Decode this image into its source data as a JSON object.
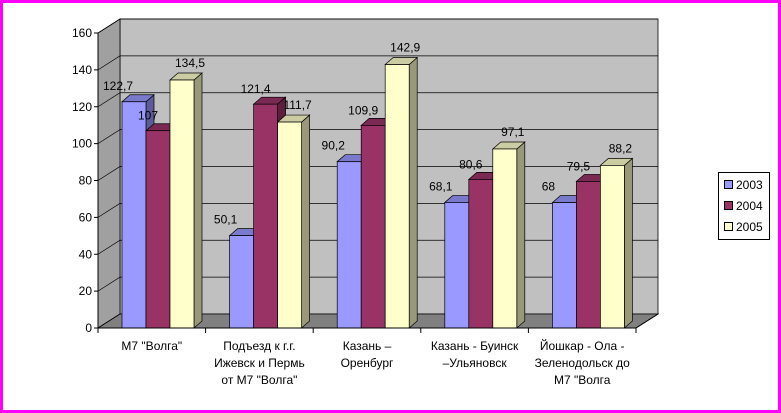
{
  "colors": {
    "frame": "#ff00ff",
    "plot_back_wall": "#c0c0c0",
    "plot_floor": "#808080",
    "plot_side_wall": "#a0a0a0",
    "series": [
      "#9999ff",
      "#993366",
      "#ffffcc"
    ]
  },
  "chart_data": {
    "type": "bar",
    "style": "3d-clustered-column",
    "categories": [
      "М7 \"Волга\"",
      "Подъезд к г.г. Ижевск и Пермь от М7 \"Волга\"",
      "Казань – Оренбург",
      "Казань - Буинск –Ульяновск",
      "Йошкар - Ола - Зеленодольск до М7 \"Волга"
    ],
    "category_label_lines": [
      [
        "М7 \"Волга\""
      ],
      [
        "Подъезд к г.г.",
        "Ижевск и Пермь",
        "от М7 \"Волга\""
      ],
      [
        "Казань –",
        "Оренбург"
      ],
      [
        "Казань - Буинск",
        "–Ульяновск"
      ],
      [
        "Йошкар - Ола -",
        "Зеленодольск до",
        "М7 \"Волга"
      ]
    ],
    "series": [
      {
        "name": "2003",
        "values": [
          122.7,
          50.1,
          90.2,
          68.1,
          68
        ],
        "labels": [
          "122,7",
          "50,1",
          "90,2",
          "68,1",
          "68"
        ]
      },
      {
        "name": "2004",
        "values": [
          107,
          121.4,
          109.9,
          80.6,
          79.5
        ],
        "labels": [
          "107",
          "121,4",
          "109,9",
          "80,6",
          "79,5"
        ]
      },
      {
        "name": "2005",
        "values": [
          134.5,
          111.7,
          142.9,
          97.1,
          88.2
        ],
        "labels": [
          "134,5",
          "111,7",
          "142,9",
          "97,1",
          "88,2"
        ]
      }
    ],
    "ylim": [
      0,
      160
    ],
    "yticks": [
      0,
      20,
      40,
      60,
      80,
      100,
      120,
      140,
      160
    ],
    "grid": true,
    "legend_position": "right"
  }
}
